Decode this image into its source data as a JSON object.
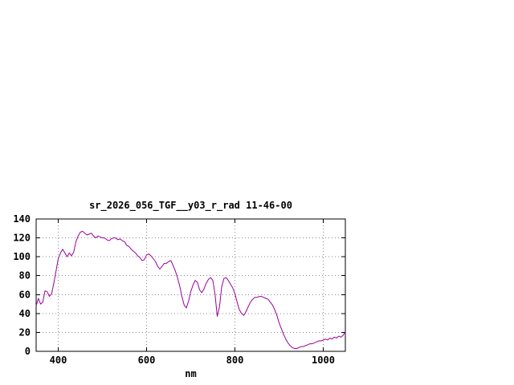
{
  "window": {
    "background_color": "#ffffff"
  },
  "chart_data": {
    "type": "line",
    "title": "sr_2026_056_TGF__y03_r_rad 11-46-00",
    "xlabel": "nm",
    "ylabel": "",
    "xlim": [
      350,
      1050
    ],
    "ylim": [
      0,
      140
    ],
    "xticks": [
      400,
      600,
      800,
      1000
    ],
    "yticks": [
      0,
      20,
      40,
      60,
      80,
      100,
      120,
      140
    ],
    "grid": true,
    "legend_position": "none",
    "line_color": "#990099",
    "series_name": "sr_2026_056_TGF__y03_r_rad",
    "x": [
      350,
      355,
      360,
      365,
      370,
      375,
      380,
      385,
      390,
      395,
      400,
      405,
      410,
      415,
      420,
      425,
      430,
      435,
      440,
      445,
      450,
      455,
      460,
      465,
      470,
      475,
      480,
      485,
      490,
      495,
      500,
      505,
      510,
      515,
      520,
      525,
      530,
      535,
      540,
      545,
      550,
      555,
      560,
      565,
      570,
      575,
      580,
      585,
      590,
      595,
      600,
      605,
      610,
      615,
      620,
      625,
      630,
      635,
      640,
      645,
      650,
      655,
      660,
      665,
      670,
      675,
      680,
      685,
      690,
      695,
      700,
      705,
      710,
      715,
      720,
      725,
      730,
      735,
      740,
      745,
      750,
      755,
      760,
      765,
      770,
      775,
      780,
      785,
      790,
      795,
      800,
      805,
      810,
      815,
      820,
      825,
      830,
      835,
      840,
      845,
      850,
      855,
      860,
      865,
      870,
      875,
      880,
      885,
      890,
      895,
      900,
      905,
      910,
      915,
      920,
      925,
      930,
      935,
      940,
      945,
      950,
      955,
      960,
      965,
      970,
      975,
      980,
      985,
      990,
      995,
      1000,
      1005,
      1010,
      1015,
      1020,
      1025,
      1030,
      1035,
      1040,
      1045,
      1050
    ],
    "y": [
      48,
      56,
      50,
      52,
      64,
      63,
      58,
      61,
      72,
      85,
      98,
      104,
      108,
      104,
      100,
      104,
      101,
      105,
      116,
      122,
      126,
      127,
      125,
      123,
      124,
      125,
      122,
      120,
      122,
      121,
      120,
      120,
      118,
      117,
      119,
      120,
      120,
      118,
      119,
      117,
      116,
      112,
      111,
      108,
      106,
      104,
      101,
      99,
      96,
      97,
      102,
      103,
      101,
      98,
      95,
      90,
      87,
      90,
      93,
      93,
      95,
      96,
      91,
      85,
      78,
      69,
      58,
      49,
      46,
      53,
      63,
      70,
      75,
      73,
      65,
      62,
      66,
      72,
      76,
      78,
      75,
      60,
      37,
      47,
      68,
      77,
      78,
      75,
      71,
      67,
      61,
      52,
      44,
      40,
      38,
      42,
      47,
      52,
      55,
      57,
      57,
      58,
      58,
      57,
      56,
      55,
      52,
      49,
      44,
      38,
      30,
      24,
      18,
      13,
      9,
      6,
      4,
      3,
      3,
      4,
      5,
      5,
      6,
      7,
      8,
      8,
      9,
      10,
      11,
      11,
      12,
      13,
      12,
      14,
      13,
      15,
      14,
      16,
      15,
      17,
      21
    ]
  }
}
